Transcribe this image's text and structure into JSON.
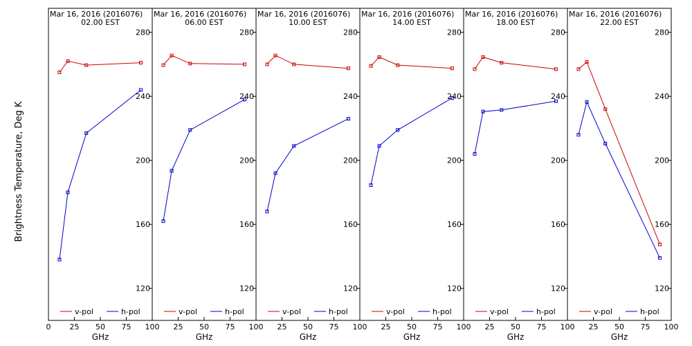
{
  "figure": {
    "ylabel": "Brightness Temperature, Deg K"
  },
  "legend": {
    "v_label": "v-pol",
    "h_label": "h-pol"
  },
  "colors": {
    "v": "#cc0000",
    "h": "#0000cc",
    "axis": "#000000"
  },
  "chart_data": [
    {
      "type": "line",
      "title": "Mar 16, 2016 (2016076)",
      "subtitle": "02.00 EST",
      "xlabel": "GHz",
      "ylabel": "Brightness Temperature, Deg K",
      "xlim": [
        0,
        100
      ],
      "ylim": [
        100,
        295
      ],
      "xticks": [
        0,
        25,
        50,
        75,
        100
      ],
      "yticks": [
        120,
        160,
        200,
        240,
        280
      ],
      "series": [
        {
          "name": "v-pol",
          "x": [
            10.65,
            18.7,
            36.5,
            89
          ],
          "y": [
            255,
            262,
            259.5,
            261
          ]
        },
        {
          "name": "h-pol",
          "x": [
            10.65,
            18.7,
            36.5,
            89
          ],
          "y": [
            138,
            180,
            217,
            244
          ]
        }
      ]
    },
    {
      "type": "line",
      "title": "Mar 16, 2016 (2016076)",
      "subtitle": "06.00 EST",
      "xlabel": "GHz",
      "ylabel": "Brightness Temperature, Deg K",
      "xlim": [
        0,
        100
      ],
      "ylim": [
        100,
        295
      ],
      "xticks": [
        0,
        25,
        50,
        75,
        100
      ],
      "yticks": [
        120,
        160,
        200,
        240,
        280
      ],
      "series": [
        {
          "name": "v-pol",
          "x": [
            10.65,
            18.7,
            36.5,
            89
          ],
          "y": [
            259.5,
            265.5,
            260.5,
            260
          ]
        },
        {
          "name": "h-pol",
          "x": [
            10.65,
            18.7,
            36.5,
            89
          ],
          "y": [
            162,
            193.5,
            219,
            238
          ]
        }
      ]
    },
    {
      "type": "line",
      "title": "Mar 16, 2016 (2016076)",
      "subtitle": "10.00 EST",
      "xlabel": "GHz",
      "ylabel": "Brightness Temperature, Deg K",
      "xlim": [
        0,
        100
      ],
      "ylim": [
        100,
        295
      ],
      "xticks": [
        0,
        25,
        50,
        75,
        100
      ],
      "yticks": [
        120,
        160,
        200,
        240,
        280
      ],
      "series": [
        {
          "name": "v-pol",
          "x": [
            10.65,
            18.7,
            36.5,
            89
          ],
          "y": [
            260,
            265.5,
            260,
            257.5
          ]
        },
        {
          "name": "h-pol",
          "x": [
            10.65,
            18.7,
            36.5,
            89
          ],
          "y": [
            168,
            192,
            209,
            226
          ]
        }
      ]
    },
    {
      "type": "line",
      "title": "Mar 16, 2016 (2016076)",
      "subtitle": "14.00 EST",
      "xlabel": "GHz",
      "ylabel": "Brightness Temperature, Deg K",
      "xlim": [
        0,
        100
      ],
      "ylim": [
        100,
        295
      ],
      "xticks": [
        0,
        25,
        50,
        75,
        100
      ],
      "yticks": [
        120,
        160,
        200,
        240,
        280
      ],
      "series": [
        {
          "name": "v-pol",
          "x": [
            10.65,
            18.7,
            36.5,
            89
          ],
          "y": [
            259,
            264.5,
            259.5,
            257.5
          ]
        },
        {
          "name": "h-pol",
          "x": [
            10.65,
            18.7,
            36.5,
            89
          ],
          "y": [
            184.5,
            209,
            219,
            239
          ]
        }
      ]
    },
    {
      "type": "line",
      "title": "Mar 16, 2016 (2016076)",
      "subtitle": "18.00 EST",
      "xlabel": "GHz",
      "ylabel": "Brightness Temperature, Deg K",
      "xlim": [
        0,
        100
      ],
      "ylim": [
        100,
        295
      ],
      "xticks": [
        0,
        25,
        50,
        75,
        100
      ],
      "yticks": [
        120,
        160,
        200,
        240,
        280
      ],
      "series": [
        {
          "name": "v-pol",
          "x": [
            10.65,
            18.7,
            36.5,
            89
          ],
          "y": [
            257,
            264.5,
            261,
            257
          ]
        },
        {
          "name": "h-pol",
          "x": [
            10.65,
            18.7,
            36.5,
            89
          ],
          "y": [
            204,
            230.5,
            231.5,
            237
          ]
        }
      ]
    },
    {
      "type": "line",
      "title": "Mar 16, 2016 (2016076)",
      "subtitle": "22.00 EST",
      "xlabel": "GHz",
      "ylabel": "Brightness Temperature, Deg K",
      "xlim": [
        0,
        100
      ],
      "ylim": [
        100,
        295
      ],
      "xticks": [
        0,
        25,
        50,
        75,
        100
      ],
      "yticks": [
        120,
        160,
        200,
        240,
        280
      ],
      "series": [
        {
          "name": "v-pol",
          "x": [
            10.65,
            18.7,
            36.5,
            89
          ],
          "y": [
            257,
            261.5,
            232,
            147.5
          ]
        },
        {
          "name": "h-pol",
          "x": [
            10.65,
            18.7,
            36.5,
            89
          ],
          "y": [
            216,
            236.5,
            210.5,
            139
          ]
        }
      ]
    }
  ]
}
